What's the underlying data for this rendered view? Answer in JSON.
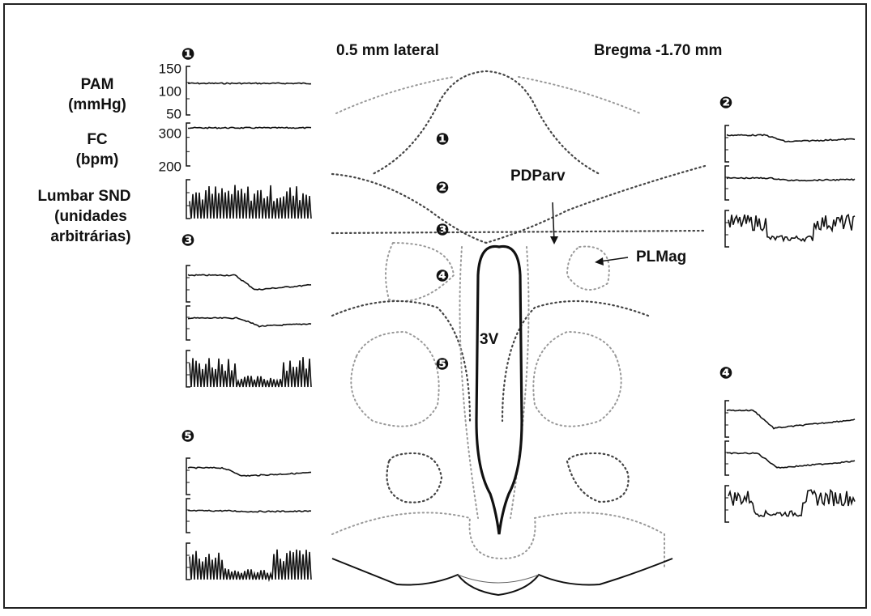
{
  "header": {
    "lateral": "0.5 mm lateral",
    "bregma": "Bregma -1.70 mm"
  },
  "axis_labels": {
    "pam": [
      "PAM",
      "(mmHg)"
    ],
    "fc": [
      "FC",
      "(bpm)"
    ],
    "snd": [
      "Lumbar SND",
      "(unidades",
      "arbitrárias)"
    ]
  },
  "pam_ticks": [
    150,
    100,
    50
  ],
  "fc_ticks": [
    300,
    200
  ],
  "panel_markers": [
    "❶",
    "❸",
    "❺",
    "❷",
    "❹"
  ],
  "site_markers": [
    "❶",
    "❷",
    "❸",
    "❹",
    "❺"
  ],
  "regions": {
    "pdparv": "PDParv",
    "plmag": "PLMag",
    "ventricle": "3V"
  }
}
